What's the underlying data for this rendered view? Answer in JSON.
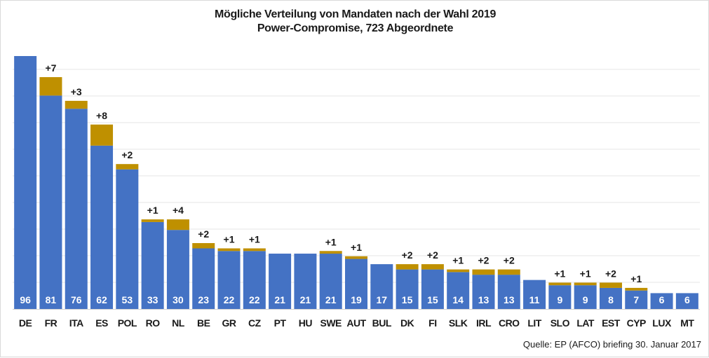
{
  "chart_data": {
    "type": "bar",
    "stacked": true,
    "title": "Mögliche Verteilung von Mandaten nach der Wahl 2019",
    "subtitle": "Power-Compromise, 723 Abgeordnete",
    "categories": [
      "DE",
      "FR",
      "ITA",
      "ES",
      "POL",
      "RO",
      "NL",
      "BE",
      "GR",
      "CZ",
      "PT",
      "HU",
      "SWE",
      "AUT",
      "BUL",
      "DK",
      "FI",
      "SLK",
      "IRL",
      "CRO",
      "LIT",
      "SLO",
      "LAT",
      "EST",
      "CYP",
      "LUX",
      "MT"
    ],
    "series": [
      {
        "values": [
          96,
          81,
          76,
          62,
          53,
          33,
          30,
          23,
          22,
          22,
          21,
          21,
          21,
          19,
          17,
          15,
          15,
          14,
          13,
          13,
          11,
          9,
          9,
          8,
          7,
          6,
          6
        ],
        "color": "#4472c4"
      },
      {
        "values": [
          0,
          7,
          3,
          8,
          2,
          1,
          4,
          2,
          1,
          1,
          0,
          0,
          1,
          1,
          0,
          2,
          2,
          1,
          2,
          2,
          0,
          1,
          1,
          2,
          1,
          0,
          0
        ],
        "color": "#bf9000"
      }
    ],
    "base_labels": [
      "96",
      "81",
      "76",
      "62",
      "53",
      "33",
      "30",
      "23",
      "22",
      "22",
      "21",
      "21",
      "21",
      "19",
      "17",
      "15",
      "15",
      "14",
      "13",
      "13",
      "11",
      "9",
      "9",
      "8",
      "7",
      "6",
      "6"
    ],
    "increase_labels": [
      "",
      "+7",
      "+3",
      "+8",
      "+2",
      "+1",
      "+4",
      "+2",
      "+1",
      "+1",
      "",
      "",
      "+1",
      "+1",
      "",
      "+2",
      "+2",
      "+1",
      "+2",
      "+2",
      "",
      "+1",
      "+1",
      "+2",
      "+1",
      "",
      ""
    ],
    "ylim": [
      0,
      96
    ],
    "grid": true,
    "source": "Quelle: EP (AFCO) briefing 30. Januar 2017"
  }
}
